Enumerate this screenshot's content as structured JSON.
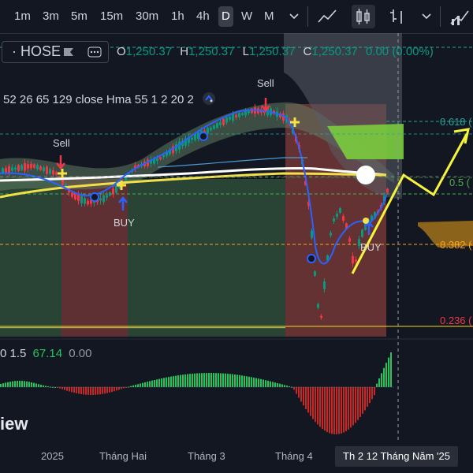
{
  "toolbar": {
    "timeframes": [
      "1m",
      "3m",
      "5m",
      "15m",
      "30m",
      "1h",
      "4h",
      "D",
      "W",
      "M"
    ],
    "active_timeframe": "D"
  },
  "symbol": {
    "exchange": "HOSE"
  },
  "ohlc": {
    "o_label": "O",
    "o": "1,250.37",
    "h_label": "H",
    "h": "1,250.37",
    "l_label": "L",
    "l": "1,250.37",
    "c_label": "C",
    "c": "1,250.37",
    "change": "0.00 (0.00%)"
  },
  "indicator": {
    "label": "52 26 65 129 close Hma 55 1 2 20 2"
  },
  "oscillator": {
    "param": "0 1.5",
    "value": "67.14",
    "value2": "0.00"
  },
  "signals": {
    "sell": "Sell",
    "buy": "BUY"
  },
  "fib_levels": [
    {
      "label": "0.618 (",
      "color": "#26a69a"
    },
    {
      "label": "0.5 (",
      "color": "#4caf50"
    },
    {
      "label": "0.382 (",
      "color": "#f5a623"
    },
    {
      "label": "0.236 (",
      "color": "#f23645"
    }
  ],
  "watermark": "iew",
  "x_axis": [
    "2025",
    "Tháng Hai",
    "Tháng 3",
    "Tháng 4"
  ],
  "crosshair_date": "Th 2 12 Tháng Năm '25",
  "colors": {
    "up": "#089981",
    "down": "#f23645",
    "background": "#131722"
  }
}
